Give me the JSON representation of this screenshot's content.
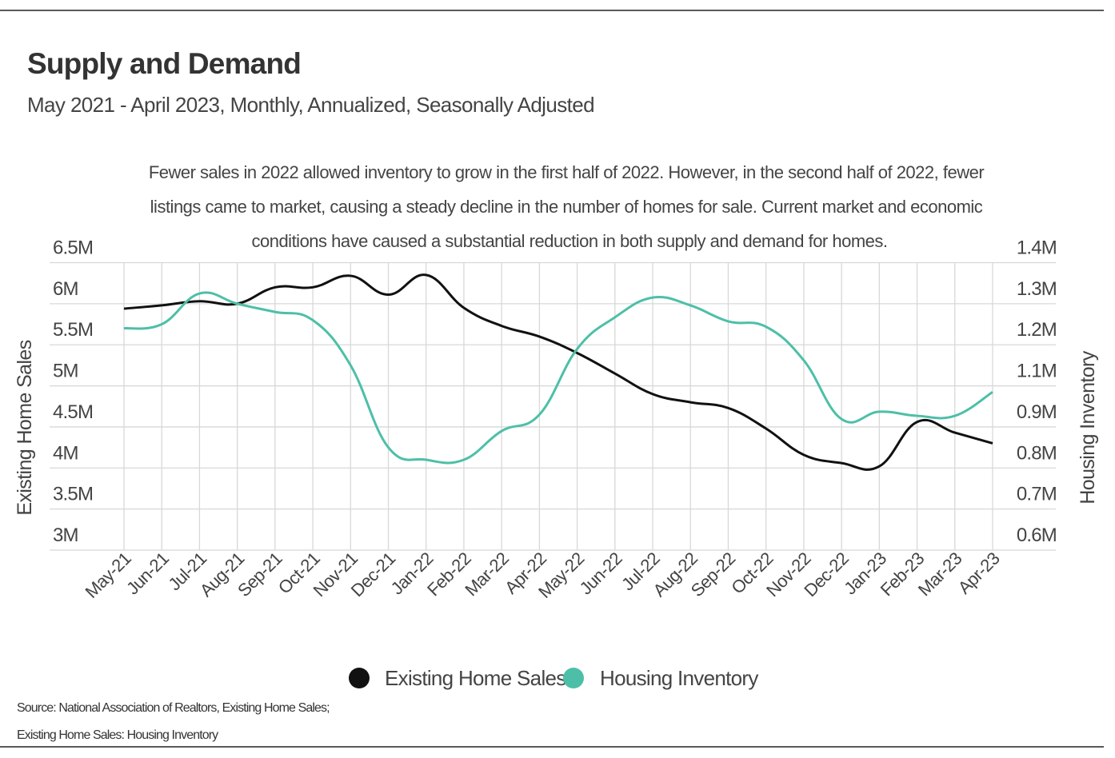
{
  "chart_data": {
    "type": "line",
    "title": "Supply and Demand",
    "subtitle": "May 2021 - April 2023, Monthly, Annualized, Seasonally Adjusted",
    "annotation": [
      "Fewer sales in 2022 allowed inventory to grow in the first half of 2022. However, in the second half of 2022, fewer",
      "listings came to market, causing a steady decline in the number of homes for sale. Current market and economic",
      "conditions have caused a substantial reduction in both supply and demand for homes."
    ],
    "categories": [
      "May-21",
      "Jun-21",
      "Jul-21",
      "Aug-21",
      "Sep-21",
      "Oct-21",
      "Nov-21",
      "Dec-21",
      "Jan-22",
      "Feb-22",
      "Mar-22",
      "Apr-22",
      "May-22",
      "Jun-22",
      "Jul-22",
      "Aug-22",
      "Sep-22",
      "Oct-22",
      "Nov-22",
      "Dec-22",
      "Jan-23",
      "Feb-23",
      "Mar-23",
      "Apr-23"
    ],
    "ylabel_left": "Existing Home Sales",
    "ylabel_right": "Housing Inventory",
    "yticks_left": {
      "values": [
        6.5,
        6.0,
        5.5,
        5.0,
        4.5,
        4.0,
        3.5,
        3.0
      ],
      "labels": [
        "6.5M",
        "6M",
        "5.5M",
        "5M",
        "4.5M",
        "4M",
        "3.5M",
        "3M"
      ]
    },
    "yticks_right": {
      "values": [
        1.4,
        1.3,
        1.2,
        1.1,
        0.9,
        0.8,
        0.7,
        0.6
      ],
      "labels": [
        "1.4M",
        "1.3M",
        "1.2M",
        "1.1M",
        "0.9M",
        "0.8M",
        "0.7M",
        "0.6M"
      ]
    },
    "ylim_left": [
      3.0,
      6.5
    ],
    "ylim_right": [
      0.6,
      1.4
    ],
    "grid": true,
    "legend_position": "bottom",
    "series": [
      {
        "name": "Existing Home Sales",
        "axis": "left",
        "color": "#111111",
        "unit": "M",
        "values": [
          5.94,
          5.98,
          6.03,
          6.0,
          6.2,
          6.2,
          6.34,
          6.11,
          6.35,
          5.95,
          5.73,
          5.6,
          5.4,
          5.15,
          4.9,
          4.8,
          4.73,
          4.48,
          4.16,
          4.06,
          4.02,
          4.56,
          4.43,
          4.3
        ]
      },
      {
        "name": "Housing Inventory",
        "axis": "right",
        "color": "#4dbfa8",
        "unit": "M",
        "values": [
          1.24,
          1.25,
          1.325,
          1.3,
          1.28,
          1.26,
          1.15,
          0.85,
          0.82,
          0.82,
          0.89,
          0.96,
          1.19,
          1.267,
          1.315,
          1.296,
          1.257,
          1.244,
          1.162,
          0.938,
          0.974,
          0.954,
          0.954,
          1.07
        ]
      }
    ],
    "source": [
      "Source:  National Association of Realtors, Existing Home Sales;",
      "Existing Home Sales: Housing Inventory"
    ]
  }
}
